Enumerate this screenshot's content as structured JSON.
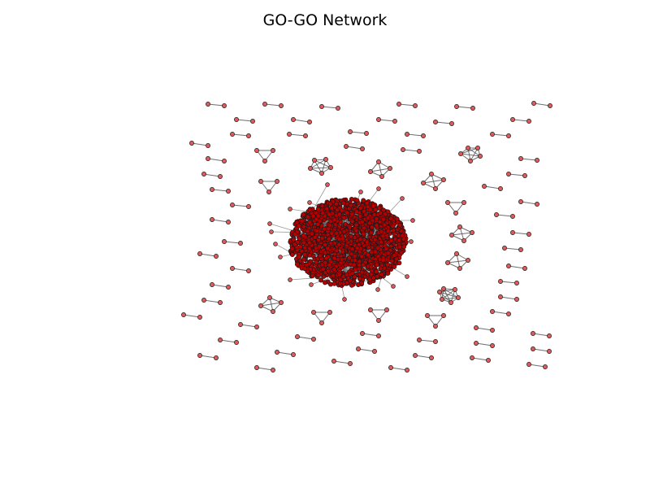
{
  "title": "GO-GO Network",
  "colors": {
    "node_fill": "#e05a5a",
    "core_fill": "#b80000",
    "node_stroke": "#1a1a1a",
    "edge": "#555555",
    "background": "#ffffff"
  }
}
